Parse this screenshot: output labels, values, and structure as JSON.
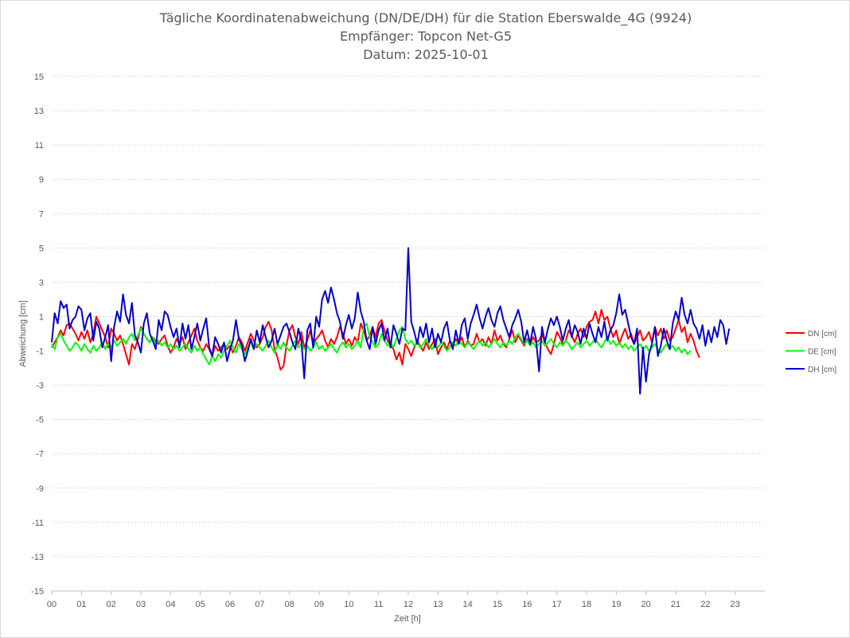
{
  "chart_data": {
    "type": "line",
    "title": [
      "Tägliche Koordinatenabweichung (DN/DE/DH) für die Station Eberswalde_4G (9924)",
      "Empfänger: Topcon Net-G5",
      "Datum: 2025-10-01"
    ],
    "xlabel": "Zeit [h]",
    "ylabel": "Abweichung [cm]",
    "ylim": [
      -15,
      15
    ],
    "xlim": [
      0,
      24
    ],
    "yticks": [
      "15",
      "13",
      "11",
      "9",
      "7",
      "5",
      "3",
      "1",
      "-1",
      "-3",
      "-5",
      "-7",
      "-9",
      "-11",
      "-13",
      "-15"
    ],
    "xticks": [
      "00",
      "01",
      "02",
      "03",
      "04",
      "05",
      "06",
      "07",
      "08",
      "09",
      "10",
      "11",
      "12",
      "13",
      "14",
      "15",
      "16",
      "17",
      "18",
      "19",
      "20",
      "21",
      "22",
      "23"
    ],
    "legend_position": "right",
    "grid": true,
    "x_step_hours": 0.1,
    "series": [
      {
        "name": "DN [cm]",
        "color": "#ff0000",
        "values": [
          -0.8,
          -0.5,
          -0.2,
          0.2,
          -0.1,
          0.5,
          0.6,
          0.3,
          0.0,
          -0.4,
          0.1,
          -0.3,
          0.2,
          -0.5,
          0.0,
          1.0,
          0.6,
          0.2,
          -0.2,
          -0.8,
          0.3,
          0.0,
          -0.4,
          -0.1,
          -0.6,
          -1.2,
          -1.8,
          -0.6,
          -0.9,
          -0.3,
          0.4,
          0.0,
          -0.3,
          -0.5,
          -0.2,
          -0.4,
          -0.6,
          -0.3,
          -0.1,
          -0.7,
          -1.1,
          -0.8,
          -0.3,
          -0.6,
          -0.2,
          -0.9,
          -0.5,
          -0.1,
          0.3,
          -0.4,
          -0.8,
          -1.0,
          -0.6,
          -0.9,
          -1.3,
          -0.7,
          -1.0,
          -0.8,
          -0.6,
          -0.9,
          -0.7,
          -1.1,
          -0.7,
          -0.2,
          -0.5,
          -1.0,
          -0.5,
          0.0,
          -0.4,
          -0.8,
          -0.6,
          -0.2,
          0.4,
          0.7,
          0.2,
          -0.9,
          -1.4,
          -2.1,
          -1.9,
          -0.7,
          0.2,
          0.5,
          -0.2,
          -0.6,
          0.1,
          -0.8,
          -0.4,
          0.2,
          -0.6,
          -0.3,
          -0.1,
          0.2,
          -0.4,
          -0.8,
          -0.3,
          -0.6,
          -0.2,
          0.4,
          0.0,
          -0.6,
          -0.3,
          -0.7,
          -0.2,
          -0.5,
          0.6,
          0.2,
          -0.4,
          -0.1,
          0.4,
          -0.2,
          0.6,
          0.8,
          0.2,
          -0.4,
          -0.7,
          -0.9,
          -1.5,
          -1.1,
          -1.8,
          -0.6,
          -0.9,
          -1.3,
          -0.8,
          -0.4,
          -0.7,
          -1.0,
          -0.5,
          -0.9,
          -0.6,
          -0.3,
          -1.2,
          -0.8,
          -0.5,
          -0.9,
          -0.4,
          -0.7,
          -0.3,
          -0.6,
          -0.2,
          -0.8,
          -0.4,
          -0.7,
          -0.6,
          0.0,
          -0.5,
          -0.3,
          -0.7,
          -0.2,
          -0.6,
          0.2,
          -0.4,
          -0.1,
          -0.6,
          -0.8,
          -0.3,
          0.2,
          -0.5,
          -0.1,
          -0.4,
          -0.7,
          -0.3,
          -0.6,
          -0.2,
          -0.5,
          -0.4,
          0.0,
          -0.5,
          -0.9,
          -1.2,
          -0.6,
          0.1,
          -0.2,
          -0.6,
          -0.4,
          0.2,
          -0.1,
          -0.5,
          0.0,
          0.3,
          -0.2,
          0.4,
          0.7,
          0.8,
          1.3,
          0.6,
          1.4,
          0.8,
          1.0,
          0.3,
          -0.2,
          0.2,
          -0.6,
          -0.1,
          0.3,
          -0.3,
          0.0,
          -0.6,
          -0.2,
          0.2,
          -0.4,
          -0.2,
          0.1,
          -0.5,
          0.4,
          -0.1,
          0.3,
          -0.3,
          0.2,
          -0.4,
          -0.2,
          0.3,
          0.8,
          0.1,
          0.4,
          -0.5,
          0.0,
          -0.4,
          -1.0,
          -1.4
        ]
      },
      {
        "name": "DE [cm]",
        "color": "#00ff00",
        "values": [
          -0.6,
          -0.9,
          -0.2,
          0.0,
          -0.4,
          -0.7,
          -1.0,
          -0.8,
          -0.5,
          -0.7,
          -1.0,
          -0.6,
          -0.9,
          -1.1,
          -0.7,
          -1.0,
          -0.8,
          -0.5,
          -0.9,
          -0.6,
          -0.8,
          -0.4,
          -0.7,
          -0.5,
          -0.3,
          -0.6,
          -0.2,
          0.0,
          -0.4,
          -0.1,
          0.3,
          0.0,
          -0.3,
          -0.5,
          -0.2,
          -0.6,
          -0.4,
          -0.7,
          -0.5,
          -0.8,
          -0.6,
          -0.9,
          -0.7,
          -1.0,
          -0.8,
          -0.6,
          -0.9,
          -1.1,
          -0.7,
          -1.0,
          -0.8,
          -1.2,
          -1.5,
          -1.8,
          -1.3,
          -1.6,
          -1.2,
          -1.4,
          -1.0,
          -0.7,
          -0.4,
          -0.8,
          -1.1,
          -0.6,
          -0.9,
          -1.2,
          -0.8,
          -0.5,
          -0.9,
          -0.6,
          -0.8,
          -1.0,
          -0.7,
          -0.4,
          -0.8,
          -1.1,
          -0.6,
          -0.9,
          -0.5,
          -0.8,
          -1.0,
          -0.7,
          -0.4,
          -0.8,
          -0.6,
          -0.9,
          -0.7,
          -1.0,
          -0.8,
          -0.5,
          -0.9,
          -0.7,
          -1.0,
          -0.8,
          -0.6,
          -0.9,
          -1.1,
          -0.7,
          -0.5,
          -0.8,
          -0.6,
          -0.9,
          -0.7,
          -0.4,
          -0.8,
          0.4,
          0.6,
          -0.2,
          -0.5,
          -0.8,
          -0.6,
          0.0,
          -0.4,
          -0.7,
          -0.5,
          -0.8,
          -0.3,
          0.2,
          0.4,
          -0.3,
          -0.6,
          -0.4,
          -0.7,
          -0.5,
          -0.8,
          -0.6,
          -0.3,
          -0.7,
          -0.9,
          -0.6,
          -0.8,
          -0.5,
          -0.7,
          -1.0,
          -0.8,
          -0.5,
          -0.7,
          -0.4,
          -0.6,
          -0.8,
          -0.5,
          -0.7,
          -0.9,
          -0.6,
          -0.4,
          -0.7,
          -0.5,
          -0.8,
          -0.6,
          -0.3,
          -0.6,
          -0.8,
          -0.5,
          -0.7,
          -0.4,
          -0.6,
          -0.2,
          0.0,
          -0.3,
          -0.6,
          -0.4,
          -0.7,
          -0.5,
          -0.8,
          -0.6,
          -0.4,
          -0.7,
          -0.5,
          -0.3,
          -0.6,
          -0.8,
          -0.5,
          -0.7,
          -0.4,
          -0.6,
          -0.9,
          -0.7,
          -0.5,
          -0.8,
          -0.6,
          -0.4,
          -0.7,
          -0.5,
          -0.3,
          -0.6,
          -0.8,
          -0.5,
          -0.2,
          -0.6,
          -0.4,
          -0.7,
          -0.5,
          -0.8,
          -0.6,
          -0.9,
          -0.7,
          -1.0,
          -0.8,
          -0.6,
          -0.9,
          -0.7,
          -1.0,
          -0.8,
          -0.6,
          -0.9,
          -1.1,
          -0.8,
          -0.6,
          -0.9,
          -0.7,
          -1.0,
          -0.8,
          -1.1,
          -0.9,
          -1.2,
          -1.0
        ]
      },
      {
        "name": "DH [cm]",
        "color": "#0000cc",
        "values": [
          -0.5,
          1.2,
          0.6,
          1.9,
          1.5,
          1.7,
          0.3,
          0.8,
          1.0,
          1.6,
          1.4,
          0.2,
          0.9,
          1.2,
          -0.4,
          0.7,
          0.3,
          -0.8,
          -0.2,
          0.5,
          -1.6,
          0.4,
          1.3,
          0.7,
          2.3,
          1.1,
          0.6,
          1.8,
          -0.1,
          -0.5,
          -1.1,
          0.6,
          1.2,
          0.0,
          -0.4,
          -0.9,
          0.8,
          0.2,
          1.3,
          1.1,
          0.4,
          -0.2,
          0.3,
          -0.8,
          0.6,
          -0.3,
          0.5,
          -0.9,
          -0.2,
          0.6,
          -0.4,
          0.3,
          0.9,
          -0.8,
          -1.3,
          -0.2,
          -0.6,
          -1.1,
          -0.5,
          -1.6,
          -0.9,
          -0.4,
          0.8,
          -0.3,
          -0.7,
          -1.6,
          -1.0,
          -0.3,
          -0.9,
          0.2,
          -0.5,
          0.5,
          -0.2,
          -0.8,
          -0.4,
          0.3,
          -0.6,
          -0.1,
          0.4,
          0.6,
          0.1,
          -0.5,
          -0.9,
          0.3,
          -0.4,
          -2.6,
          0.2,
          0.6,
          -0.8,
          1.0,
          0.4,
          2.0,
          2.5,
          1.8,
          2.7,
          2.0,
          1.2,
          0.7,
          -0.3,
          0.5,
          1.1,
          0.3,
          0.9,
          2.4,
          1.3,
          0.7,
          -0.4,
          -0.9,
          0.4,
          -0.6,
          0.2,
          0.6,
          -0.4,
          0.3,
          -0.8,
          0.5,
          0.0,
          -0.6,
          0.3,
          0.2,
          5.0,
          0.7,
          0.1,
          -0.6,
          0.4,
          -0.2,
          0.6,
          -0.5,
          0.3,
          -0.8,
          0.0,
          -0.5,
          0.3,
          0.7,
          -0.4,
          -0.9,
          0.2,
          -0.6,
          0.5,
          0.9,
          -0.3,
          0.6,
          1.1,
          1.7,
          0.9,
          0.3,
          1.0,
          1.5,
          0.8,
          0.4,
          1.2,
          1.6,
          0.8,
          0.3,
          -0.2,
          0.5,
          0.9,
          1.4,
          0.7,
          -0.5,
          0.2,
          -0.6,
          0.4,
          -0.3,
          -2.2,
          0.4,
          -0.5,
          0.3,
          0.9,
          0.5,
          1.0,
          0.4,
          -0.4,
          0.3,
          0.8,
          -0.2,
          0.5,
          0.1,
          -0.6,
          0.3,
          -0.3,
          0.6,
          0.0,
          -0.5,
          0.4,
          -0.2,
          0.7,
          -0.4,
          0.2,
          0.5,
          1.2,
          2.3,
          1.1,
          1.4,
          0.6,
          -0.2,
          -0.6,
          0.3,
          -3.5,
          -0.8,
          -2.8,
          -1.2,
          -0.6,
          0.4,
          -1.3,
          -0.7,
          0.3,
          -0.4,
          -0.9,
          0.6,
          1.3,
          0.8,
          2.1,
          1.1,
          0.6,
          1.4,
          0.6,
          0.3,
          -0.3,
          0.5,
          -0.7,
          0.2,
          -0.5,
          0.4,
          -0.2,
          0.8,
          0.5,
          -0.6,
          0.3
        ]
      }
    ]
  }
}
